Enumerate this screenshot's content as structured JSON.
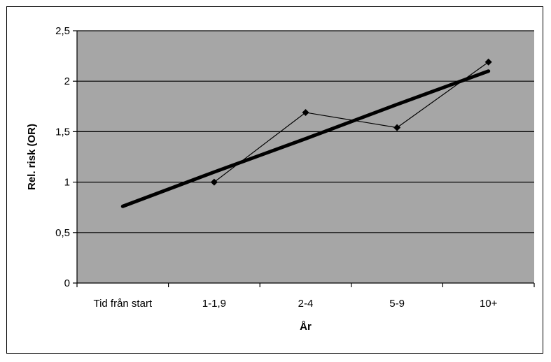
{
  "chart_data": {
    "type": "line",
    "categories": [
      "Tid från start",
      "1-1,9",
      "2-4",
      "5-9",
      "10+"
    ],
    "series": [
      {
        "values": [
          null,
          1.0,
          1.69,
          1.54,
          2.19
        ],
        "style": "thin line with diamond markers",
        "color": "#000000"
      },
      {
        "values": [
          0.76,
          1.1,
          1.43,
          1.77,
          2.1
        ],
        "style": "thick trend line",
        "color": "#000000"
      }
    ],
    "xlabel": "År",
    "ylabel": "Rel. risk (OR)",
    "ylim": [
      0,
      2.5
    ],
    "yticks": [
      "0",
      "0,5",
      "1",
      "1,5",
      "2",
      "2,5"
    ],
    "grid": true,
    "plot_background": "#a6a6a6",
    "legend": "none"
  }
}
